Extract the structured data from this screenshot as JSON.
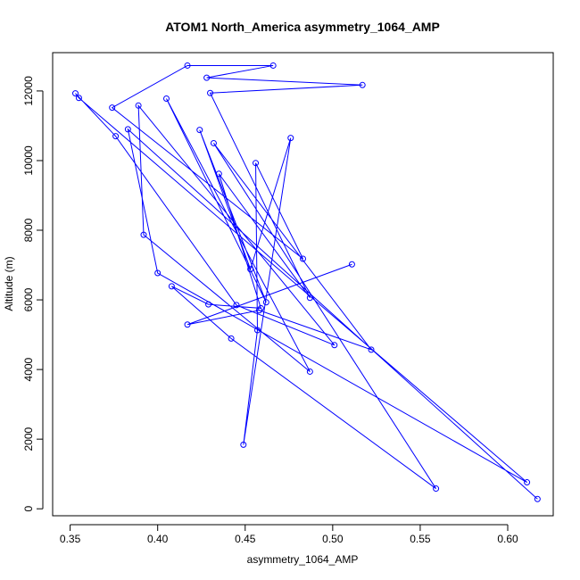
{
  "chart_data": {
    "type": "line",
    "title": "ATOM1 North_America asymmetry_1064_AMP",
    "xlabel": "asymmetry_1064_AMP",
    "ylabel": "Altitude (m)",
    "xlim": [
      0.34,
      0.626
    ],
    "ylim": [
      -200,
      13100
    ],
    "x_ticks": [
      0.35,
      0.4,
      0.45,
      0.5,
      0.55,
      0.6
    ],
    "x_tick_labels": [
      "0.35",
      "0.40",
      "0.45",
      "0.50",
      "0.55",
      "0.60"
    ],
    "y_ticks": [
      0,
      2000,
      4000,
      6000,
      8000,
      10000,
      12000
    ],
    "y_tick_labels": [
      "0",
      "2000",
      "4000",
      "6000",
      "8000",
      "10000",
      "12000"
    ],
    "grid": false,
    "series": [
      {
        "color": "#0000ff",
        "marker": "open-circle",
        "points": [
          {
            "x": 0.617,
            "y": 280
          },
          {
            "x": 0.383,
            "y": 10900
          },
          {
            "x": 0.4,
            "y": 6770
          },
          {
            "x": 0.611,
            "y": 760
          },
          {
            "x": 0.355,
            "y": 11800
          },
          {
            "x": 0.353,
            "y": 11930
          },
          {
            "x": 0.376,
            "y": 10700
          },
          {
            "x": 0.445,
            "y": 5850
          },
          {
            "x": 0.501,
            "y": 4700
          },
          {
            "x": 0.389,
            "y": 11580
          },
          {
            "x": 0.392,
            "y": 7870
          },
          {
            "x": 0.487,
            "y": 3940
          },
          {
            "x": 0.405,
            "y": 11780
          },
          {
            "x": 0.462,
            "y": 5930
          },
          {
            "x": 0.424,
            "y": 10880
          },
          {
            "x": 0.453,
            "y": 6880
          },
          {
            "x": 0.476,
            "y": 10650
          },
          {
            "x": 0.449,
            "y": 1840
          },
          {
            "x": 0.457,
            "y": 5130
          },
          {
            "x": 0.456,
            "y": 9930
          },
          {
            "x": 0.483,
            "y": 7180
          },
          {
            "x": 0.374,
            "y": 11520
          },
          {
            "x": 0.417,
            "y": 12730
          },
          {
            "x": 0.466,
            "y": 12730
          },
          {
            "x": 0.428,
            "y": 12380
          },
          {
            "x": 0.517,
            "y": 12170
          },
          {
            "x": 0.43,
            "y": 11940
          },
          {
            "x": 0.487,
            "y": 6060
          },
          {
            "x": 0.435,
            "y": 9620
          },
          {
            "x": 0.459,
            "y": 5760
          },
          {
            "x": 0.429,
            "y": 5870
          },
          {
            "x": 0.408,
            "y": 6390
          },
          {
            "x": 0.442,
            "y": 4890
          },
          {
            "x": 0.559,
            "y": 580
          },
          {
            "x": 0.432,
            "y": 10500
          },
          {
            "x": 0.522,
            "y": 4570
          },
          {
            "x": 0.458,
            "y": 5700
          },
          {
            "x": 0.417,
            "y": 5290
          },
          {
            "x": 0.511,
            "y": 7020
          }
        ]
      }
    ]
  }
}
